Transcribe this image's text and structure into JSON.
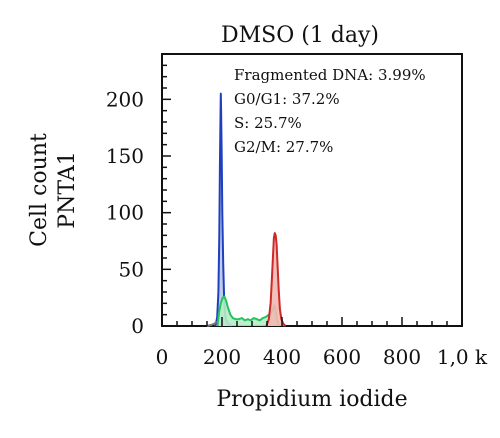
{
  "chart_data": {
    "type": "area",
    "title": "DMSO (1 day)",
    "xlabel": "Propidium iodide",
    "ylabel": [
      "Cell count",
      "PNTA1"
    ],
    "xlim": [
      0,
      1000
    ],
    "ylim": [
      0,
      240
    ],
    "xticks": [
      0,
      200,
      400,
      600,
      800,
      1000
    ],
    "xtick_labels": [
      "0",
      "200",
      "400",
      "600",
      "800",
      "1,0 k"
    ],
    "yticks": [
      0,
      50,
      100,
      150,
      200
    ],
    "ytick_labels": [
      "0",
      "50",
      "100",
      "150",
      "200"
    ],
    "annotations": [
      "Fragmented DNA: 3.99%",
      "G0/G1: 37.2%",
      "S: 25.7%",
      "G2/M: 27.7%"
    ],
    "series": [
      {
        "name": "G0/G1",
        "color": "#1f3fbf",
        "fill": "#b8c6e8",
        "points": [
          [
            176,
            0
          ],
          [
            180,
            2
          ],
          [
            184,
            8
          ],
          [
            188,
            30
          ],
          [
            191,
            80
          ],
          [
            193,
            140
          ],
          [
            195,
            185
          ],
          [
            196,
            205
          ],
          [
            197,
            190
          ],
          [
            199,
            150
          ],
          [
            201,
            100
          ],
          [
            204,
            55
          ],
          [
            207,
            25
          ],
          [
            210,
            12
          ],
          [
            213,
            6
          ],
          [
            218,
            3
          ],
          [
            225,
            1
          ],
          [
            232,
            0
          ]
        ]
      },
      {
        "name": "S",
        "color": "#22c55e",
        "fill": "#b7ecc6",
        "points": [
          [
            185,
            0
          ],
          [
            190,
            12
          ],
          [
            196,
            20
          ],
          [
            202,
            25
          ],
          [
            208,
            26
          ],
          [
            214,
            22
          ],
          [
            220,
            16
          ],
          [
            228,
            10
          ],
          [
            236,
            7
          ],
          [
            246,
            6
          ],
          [
            256,
            6
          ],
          [
            266,
            7
          ],
          [
            276,
            5
          ],
          [
            286,
            6
          ],
          [
            296,
            5
          ],
          [
            306,
            7
          ],
          [
            316,
            6
          ],
          [
            326,
            5
          ],
          [
            336,
            7
          ],
          [
            346,
            8
          ],
          [
            356,
            10
          ],
          [
            364,
            12
          ],
          [
            370,
            15
          ],
          [
            374,
            18
          ],
          [
            378,
            16
          ],
          [
            382,
            8
          ],
          [
            386,
            3
          ],
          [
            390,
            0
          ]
        ]
      },
      {
        "name": "G2/M",
        "color": "#cc2a2a",
        "fill": "#f2b8b0",
        "points": [
          [
            348,
            0
          ],
          [
            356,
            6
          ],
          [
            362,
            20
          ],
          [
            366,
            40
          ],
          [
            370,
            62
          ],
          [
            373,
            78
          ],
          [
            376,
            82
          ],
          [
            379,
            80
          ],
          [
            382,
            72
          ],
          [
            385,
            55
          ],
          [
            389,
            32
          ],
          [
            393,
            15
          ],
          [
            398,
            6
          ],
          [
            404,
            2
          ],
          [
            412,
            0
          ]
        ]
      },
      {
        "name": "Fragmented DNA",
        "color": "#777777",
        "fill": "none",
        "points": [
          [
            150,
            0
          ],
          [
            165,
            1
          ],
          [
            175,
            2
          ],
          [
            182,
            4
          ]
        ]
      }
    ]
  }
}
